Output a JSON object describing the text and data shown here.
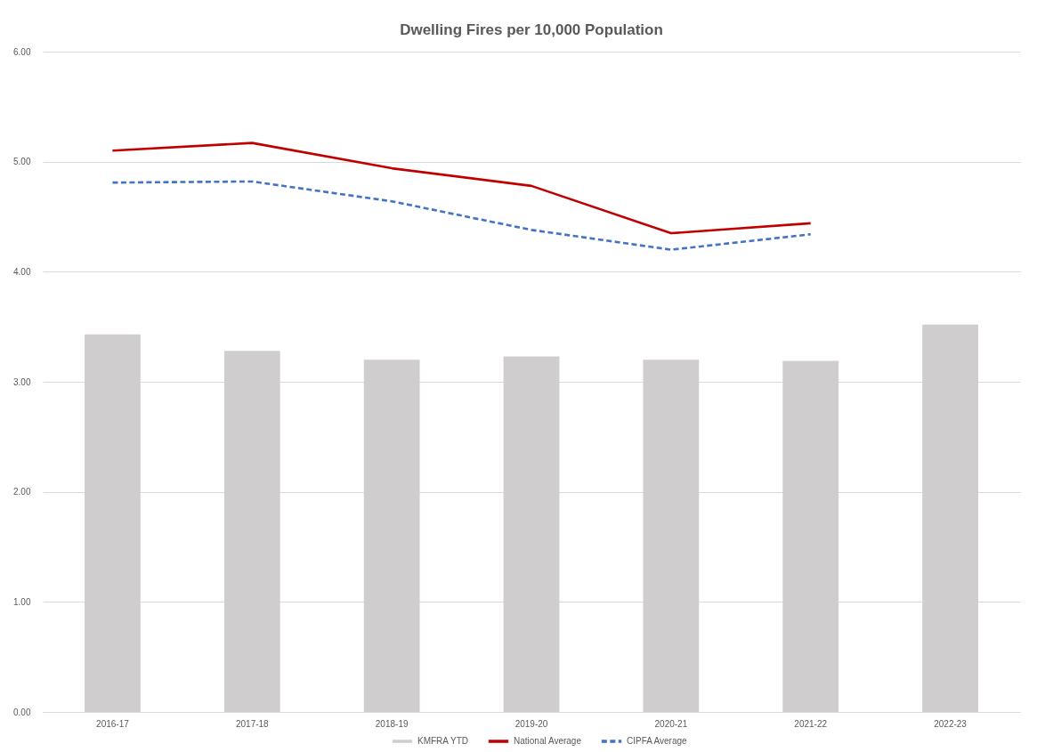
{
  "chart_data": {
    "type": "bar",
    "title": "Dwelling Fires per 10,000 Population",
    "categories": [
      "2016-17",
      "2017-18",
      "2018-19",
      "2019-20",
      "2020-21",
      "2021-22",
      "2022-23"
    ],
    "series": [
      {
        "name": "KMFRA YTD",
        "color": "#cfcdce",
        "values": [
          3.43,
          3.28,
          3.2,
          3.23,
          3.2,
          3.19,
          3.52
        ]
      },
      {
        "name": "National Average",
        "type": "line",
        "color": "#c00000",
        "line_style": "solid",
        "values": [
          5.1,
          5.17,
          4.94,
          4.78,
          4.35,
          4.44,
          null
        ]
      },
      {
        "name": "CIPFA Average",
        "type": "line",
        "color": "#4472c4",
        "line_style": "dashed",
        "values": [
          4.81,
          4.82,
          4.64,
          4.38,
          4.2,
          4.34,
          null
        ]
      }
    ],
    "ylim": [
      0,
      6
    ],
    "yticks": [
      {
        "value": 0,
        "label": "0.00"
      },
      {
        "value": 1,
        "label": "1.00"
      },
      {
        "value": 2,
        "label": "2.00"
      },
      {
        "value": 3,
        "label": "3.00"
      },
      {
        "value": 4,
        "label": "4.00"
      },
      {
        "value": 5,
        "label": "5.00"
      },
      {
        "value": 6,
        "label": "6.00"
      }
    ],
    "grid": "y",
    "legend": "bottom"
  }
}
